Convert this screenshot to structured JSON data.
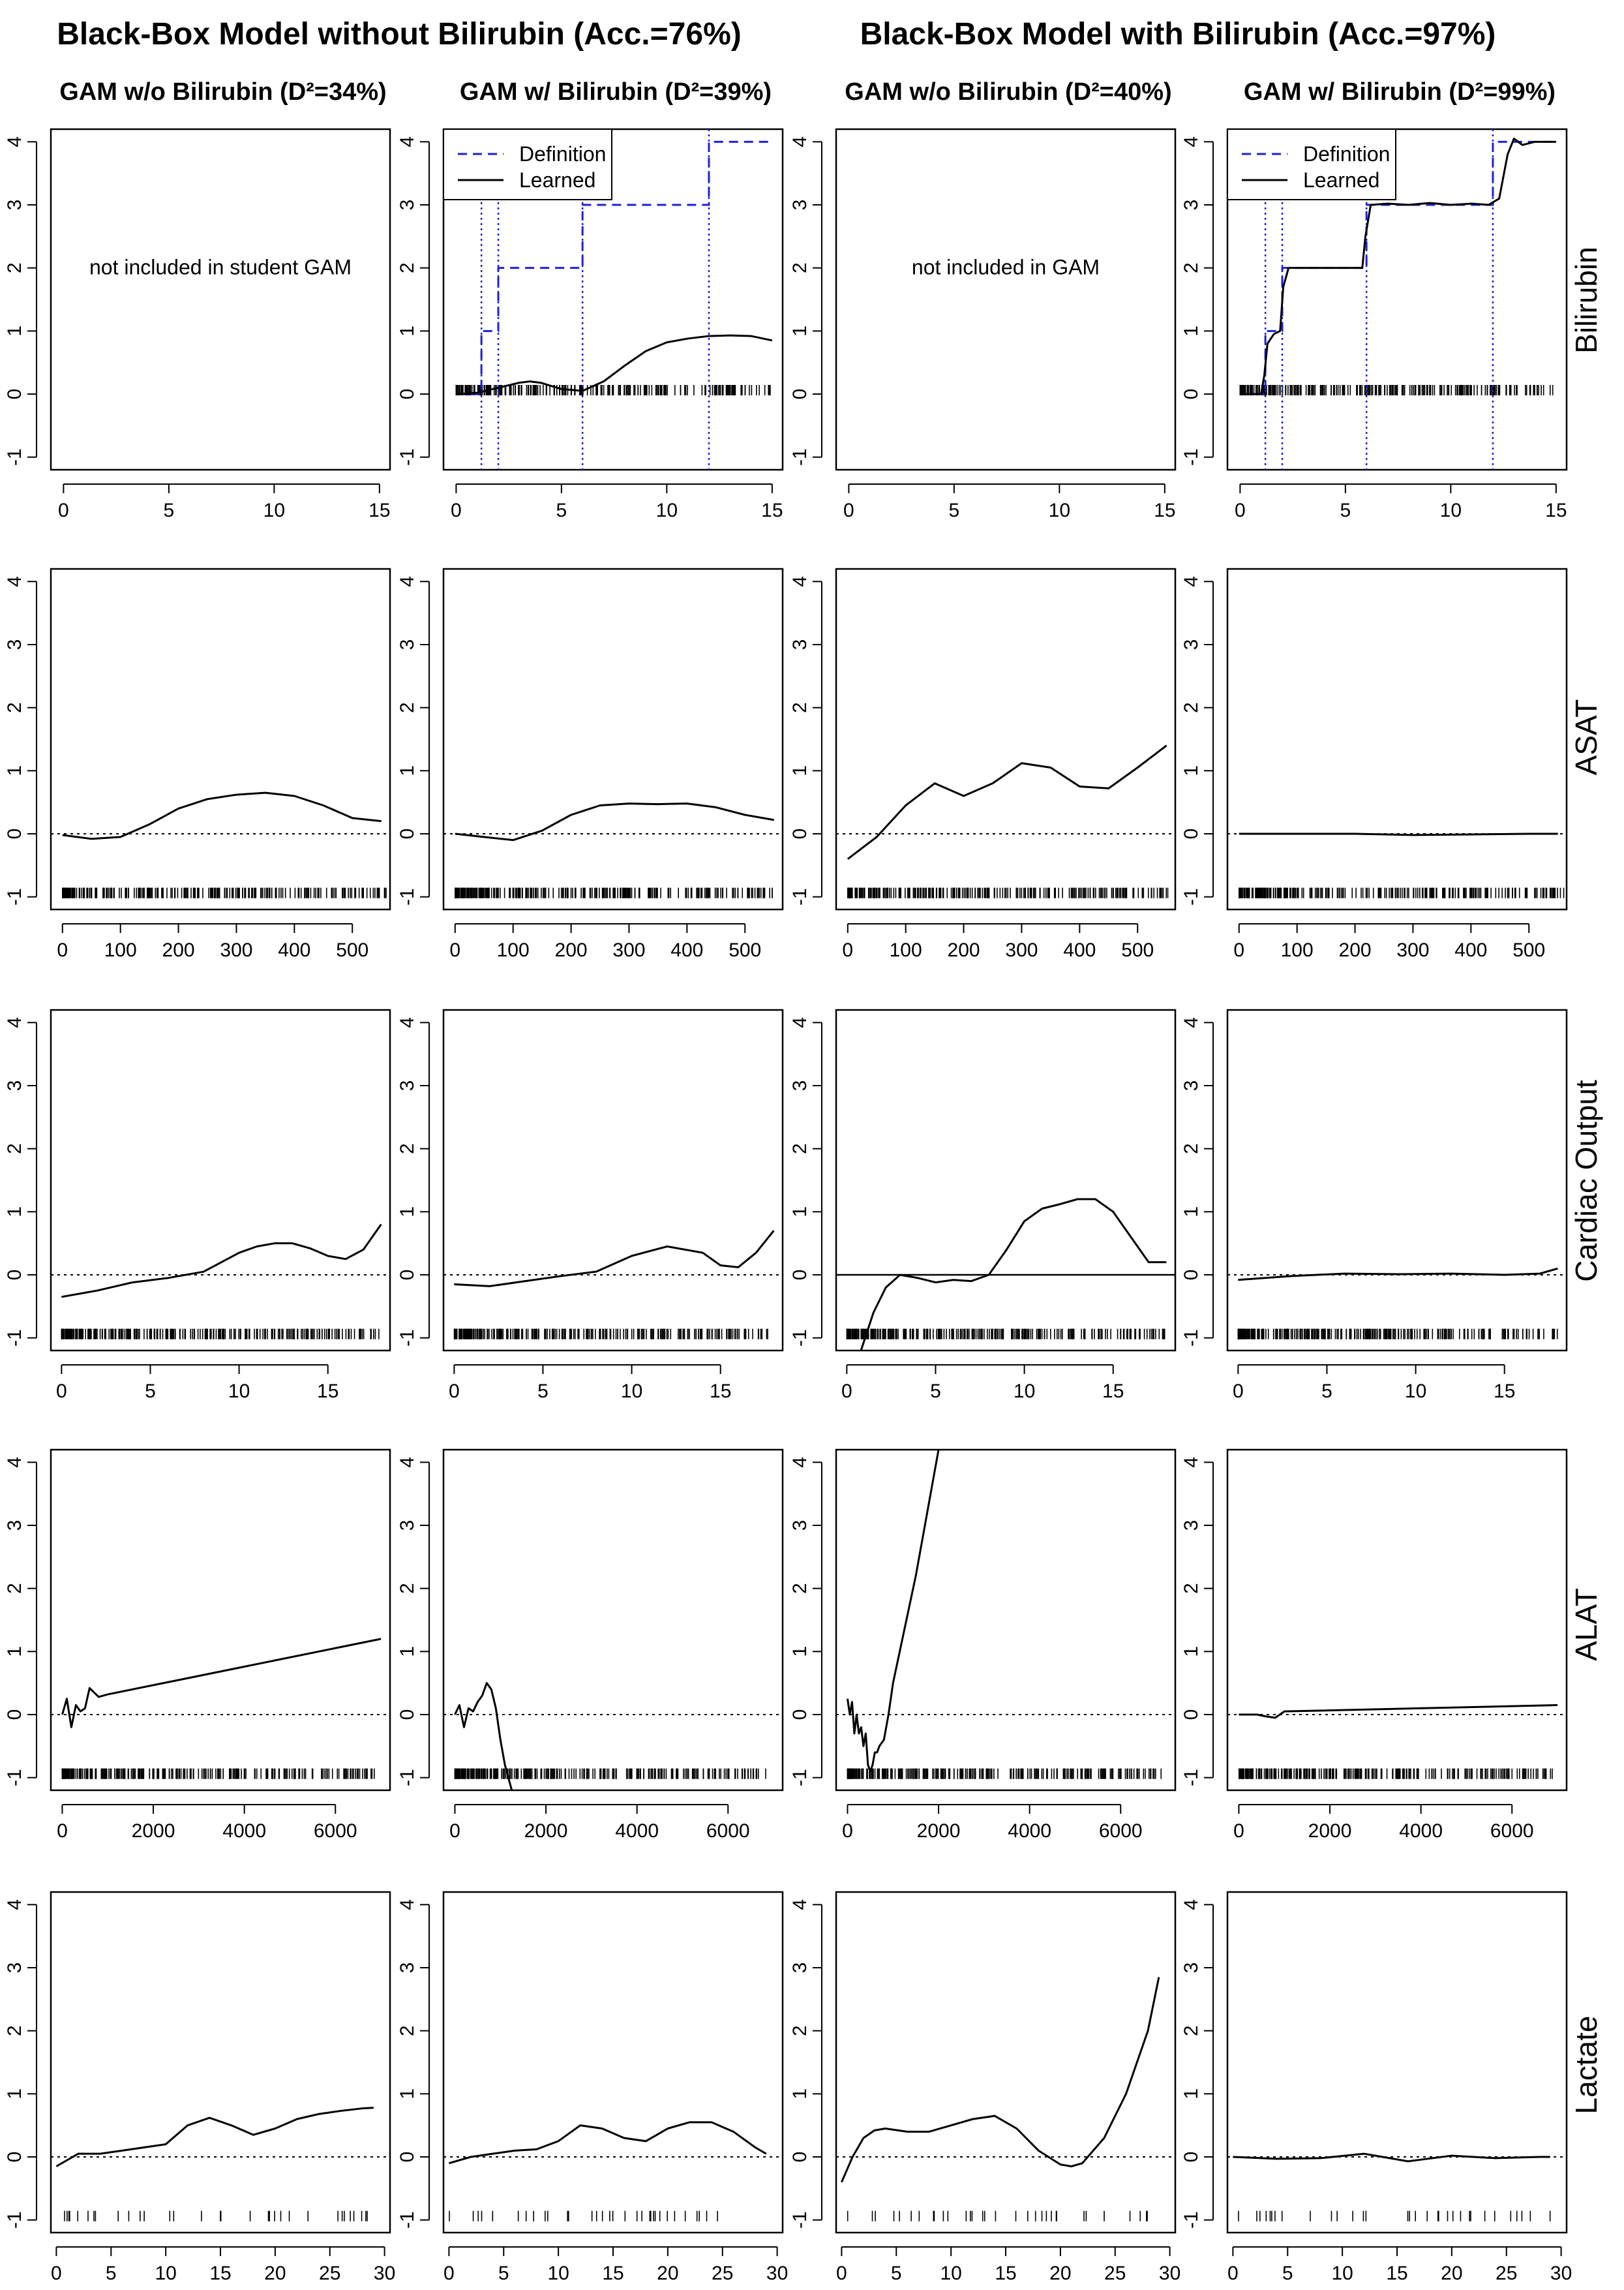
{
  "titles": {
    "group_left": "Black-Box Model without Bilirubin (Acc.=76%)",
    "group_right": "Black-Box Model with Bilirubin (Acc.=97%)",
    "columns": [
      "GAM w/o Bilirubin (D²=34%)",
      "GAM w/ Bilirubin (D²=39%)",
      "GAM w/o Bilirubin (D²=40%)",
      "GAM w/ Bilirubin (D²=99%)"
    ]
  },
  "rows": [
    "Bilirubin",
    "ASAT",
    "Cardiac Output",
    "ALAT",
    "Lactate"
  ],
  "legend_labels": [
    "Definition",
    "Learned"
  ],
  "colors": {
    "definition": "#1f1fdc",
    "learned": "#000000"
  },
  "chart_data": {
    "type": "line",
    "grid": false,
    "ylim": [
      -1.2,
      4.2
    ],
    "y_ticks": [
      -1,
      0,
      1,
      2,
      3,
      4
    ],
    "definition_step": {
      "x": [
        0,
        1.2,
        1.2,
        2,
        2,
        6,
        6,
        12,
        12,
        15
      ],
      "y": [
        0,
        0,
        1,
        1,
        2,
        2,
        3,
        3,
        4,
        4
      ],
      "cutpoints": [
        1.2,
        2,
        6,
        12
      ]
    },
    "panels": [
      [
        {
          "empty": true,
          "note": "not included in student GAM",
          "xlim": [
            -0.6,
            15.5
          ],
          "xticks": [
            0,
            5,
            10,
            15
          ]
        },
        {
          "xlim": [
            -0.6,
            15.5
          ],
          "xticks": [
            0,
            5,
            10,
            15
          ],
          "legend": true,
          "definition": true,
          "rug_max": 15,
          "x": [
            0,
            1,
            2,
            3,
            3.5,
            4,
            5,
            6,
            7,
            8,
            9,
            10,
            11,
            12,
            13,
            14,
            15
          ],
          "y": [
            0,
            0.02,
            0.1,
            0.18,
            0.2,
            0.18,
            0.08,
            0.05,
            0.2,
            0.45,
            0.68,
            0.82,
            0.88,
            0.92,
            0.93,
            0.92,
            0.85
          ]
        },
        {
          "empty": true,
          "note": "not included in GAM",
          "xlim": [
            -0.6,
            15.5
          ],
          "xticks": [
            0,
            5,
            10,
            15
          ]
        },
        {
          "xlim": [
            -0.6,
            15.5
          ],
          "xticks": [
            0,
            5,
            10,
            15
          ],
          "legend": true,
          "definition": true,
          "rug_max": 15,
          "x": [
            0,
            1,
            1.15,
            1.3,
            1.6,
            1.9,
            2.05,
            2.3,
            3,
            4,
            5,
            5.8,
            5.95,
            6.2,
            7,
            8,
            9,
            10,
            11,
            11.8,
            12.3,
            12.7,
            13,
            13.4,
            14,
            15
          ],
          "y": [
            0,
            0,
            0.3,
            0.8,
            0.95,
            1.0,
            1.7,
            2.0,
            2.0,
            2.0,
            2.0,
            2.0,
            2.5,
            3.0,
            3.02,
            3.0,
            3.03,
            3.0,
            3.02,
            3.0,
            3.1,
            3.8,
            4.05,
            3.95,
            4.0,
            4.0
          ]
        }
      ],
      [
        {
          "xlim": [
            -20,
            565
          ],
          "xticks": [
            0,
            100,
            200,
            300,
            400,
            500
          ],
          "rug_max": 560,
          "x": [
            0,
            50,
            100,
            150,
            200,
            250,
            300,
            350,
            400,
            450,
            500,
            550
          ],
          "y": [
            -0.02,
            -0.08,
            -0.05,
            0.15,
            0.4,
            0.55,
            0.62,
            0.65,
            0.6,
            0.45,
            0.25,
            0.2
          ]
        },
        {
          "xlim": [
            -20,
            565
          ],
          "xticks": [
            0,
            100,
            200,
            300,
            400,
            500
          ],
          "rug_max": 560,
          "x": [
            0,
            50,
            100,
            150,
            200,
            250,
            300,
            350,
            400,
            450,
            500,
            550
          ],
          "y": [
            0,
            -0.05,
            -0.1,
            0.05,
            0.3,
            0.45,
            0.48,
            0.47,
            0.48,
            0.42,
            0.3,
            0.22
          ]
        },
        {
          "xlim": [
            -20,
            565
          ],
          "xticks": [
            0,
            100,
            200,
            300,
            400,
            500
          ],
          "rug_max": 560,
          "x": [
            0,
            50,
            100,
            150,
            200,
            250,
            300,
            350,
            400,
            450,
            500,
            550
          ],
          "y": [
            -0.4,
            -0.05,
            0.45,
            0.8,
            0.6,
            0.8,
            1.12,
            1.05,
            0.75,
            0.72,
            1.05,
            1.4
          ]
        },
        {
          "xlim": [
            -20,
            565
          ],
          "xticks": [
            0,
            100,
            200,
            300,
            400,
            500
          ],
          "rug_max": 560,
          "x": [
            0,
            100,
            200,
            300,
            400,
            500,
            550
          ],
          "y": [
            0,
            0,
            0,
            -0.02,
            -0.01,
            0,
            0
          ]
        }
      ],
      [
        {
          "xlim": [
            -0.6,
            18.5
          ],
          "xticks": [
            0,
            5,
            10,
            15
          ],
          "rug_max": 18,
          "x": [
            0,
            2,
            4,
            6,
            8,
            9,
            10,
            11,
            12,
            13,
            14,
            15,
            16,
            17,
            18
          ],
          "y": [
            -0.35,
            -0.25,
            -0.12,
            -0.05,
            0.05,
            0.2,
            0.35,
            0.45,
            0.5,
            0.5,
            0.42,
            0.3,
            0.25,
            0.4,
            0.8
          ]
        },
        {
          "xlim": [
            -0.6,
            18.5
          ],
          "xticks": [
            0,
            5,
            10,
            15
          ],
          "rug_max": 18,
          "x": [
            0,
            2,
            4,
            6,
            8,
            10,
            12,
            14,
            15,
            16,
            17,
            18
          ],
          "y": [
            -0.15,
            -0.18,
            -0.1,
            -0.02,
            0.05,
            0.3,
            0.45,
            0.35,
            0.15,
            0.12,
            0.35,
            0.7
          ]
        },
        {
          "xlim": [
            -0.6,
            18.5
          ],
          "xticks": [
            0,
            5,
            10,
            15
          ],
          "rug_max": 18,
          "solid_zero": true,
          "x": [
            0.8,
            1.5,
            2.2,
            3,
            4,
            5,
            6,
            7,
            8,
            9,
            10,
            11,
            12,
            13,
            14,
            15,
            16,
            17,
            18
          ],
          "y": [
            -1.2,
            -0.6,
            -0.2,
            0,
            -0.05,
            -0.12,
            -0.08,
            -0.1,
            0,
            0.4,
            0.85,
            1.05,
            1.12,
            1.2,
            1.2,
            1.0,
            0.6,
            0.2,
            0.2
          ]
        },
        {
          "xlim": [
            -0.6,
            18.5
          ],
          "xticks": [
            0,
            5,
            10,
            15
          ],
          "rug_max": 18,
          "x": [
            0,
            3,
            6,
            9,
            12,
            15,
            17,
            18
          ],
          "y": [
            -0.08,
            -0.02,
            0.02,
            0.01,
            0.02,
            0,
            0.02,
            0.1
          ]
        }
      ],
      [
        {
          "xlim": [
            -250,
            7200
          ],
          "xticks": [
            0,
            2000,
            4000,
            6000
          ],
          "rug_max": 6900,
          "x": [
            0,
            100,
            200,
            300,
            400,
            500,
            600,
            700,
            800,
            1000,
            7000
          ],
          "y": [
            0,
            0.25,
            -0.2,
            0.15,
            0.05,
            0.1,
            0.42,
            0.35,
            0.28,
            0.32,
            1.2
          ]
        },
        {
          "xlim": [
            -250,
            7200
          ],
          "xticks": [
            0,
            2000,
            4000,
            6000
          ],
          "rug_max": 6900,
          "x": [
            0,
            100,
            200,
            300,
            400,
            500,
            600,
            700,
            800,
            900,
            1000,
            1100,
            1250
          ],
          "y": [
            0,
            0.15,
            -0.2,
            0.1,
            0.05,
            0.2,
            0.3,
            0.5,
            0.4,
            0.1,
            -0.4,
            -0.8,
            -1.2
          ]
        },
        {
          "xlim": [
            -250,
            7200
          ],
          "xticks": [
            0,
            2000,
            4000,
            6000
          ],
          "rug_max": 6900,
          "x": [
            0,
            50,
            100,
            150,
            200,
            250,
            300,
            350,
            400,
            450,
            500,
            550,
            600,
            650,
            700,
            800,
            900,
            1000,
            1500,
            2000
          ],
          "y": [
            0.25,
            0,
            0.2,
            -0.3,
            0,
            -0.3,
            -0.2,
            -0.5,
            -0.3,
            -0.8,
            -0.9,
            -0.8,
            -0.6,
            -0.6,
            -0.5,
            -0.4,
            0,
            0.5,
            2.2,
            4.2
          ]
        },
        {
          "xlim": [
            -250,
            7200
          ],
          "xticks": [
            0,
            2000,
            4000,
            6000
          ],
          "rug_max": 6900,
          "x": [
            0,
            400,
            600,
            800,
            1000,
            7000
          ],
          "y": [
            0,
            0,
            -0.03,
            -0.05,
            0.05,
            0.15
          ]
        }
      ],
      [
        {
          "xlim": [
            -0.5,
            30.5
          ],
          "xticks": [
            0,
            5,
            10,
            15,
            20,
            25,
            30
          ],
          "rug_max": 29,
          "sparse_rug": true,
          "x": [
            0,
            2,
            4,
            6,
            8,
            10,
            12,
            14,
            16,
            18,
            20,
            22,
            24,
            26,
            28,
            29
          ],
          "y": [
            -0.15,
            0.05,
            0.05,
            0.1,
            0.15,
            0.2,
            0.5,
            0.62,
            0.5,
            0.35,
            0.45,
            0.6,
            0.68,
            0.73,
            0.77,
            0.78
          ]
        },
        {
          "xlim": [
            -0.5,
            30.5
          ],
          "xticks": [
            0,
            5,
            10,
            15,
            20,
            25,
            30
          ],
          "rug_max": 29,
          "sparse_rug": true,
          "x": [
            0,
            2,
            4,
            6,
            8,
            10,
            12,
            14,
            16,
            18,
            20,
            22,
            24,
            26,
            28,
            29
          ],
          "y": [
            -0.1,
            0,
            0.05,
            0.1,
            0.12,
            0.25,
            0.5,
            0.45,
            0.3,
            0.25,
            0.45,
            0.55,
            0.55,
            0.4,
            0.15,
            0.05
          ]
        },
        {
          "xlim": [
            -0.5,
            30.5
          ],
          "xticks": [
            0,
            5,
            10,
            15,
            20,
            25,
            30
          ],
          "rug_max": 29,
          "sparse_rug": true,
          "x": [
            0,
            1,
            2,
            3,
            4,
            6,
            8,
            10,
            12,
            14,
            16,
            18,
            20,
            21,
            22,
            24,
            26,
            28,
            29
          ],
          "y": [
            -0.4,
            0,
            0.3,
            0.42,
            0.45,
            0.4,
            0.4,
            0.5,
            0.6,
            0.65,
            0.45,
            0.1,
            -0.12,
            -0.15,
            -0.1,
            0.3,
            1.0,
            2.0,
            2.85
          ]
        },
        {
          "xlim": [
            -0.5,
            30.5
          ],
          "xticks": [
            0,
            5,
            10,
            15,
            20,
            25,
            30
          ],
          "rug_max": 29,
          "sparse_rug": true,
          "x": [
            0,
            4,
            8,
            12,
            16,
            20,
            24,
            28,
            29
          ],
          "y": [
            0,
            -0.03,
            -0.02,
            0.05,
            -0.07,
            0.02,
            -0.02,
            0,
            0
          ]
        }
      ]
    ]
  }
}
